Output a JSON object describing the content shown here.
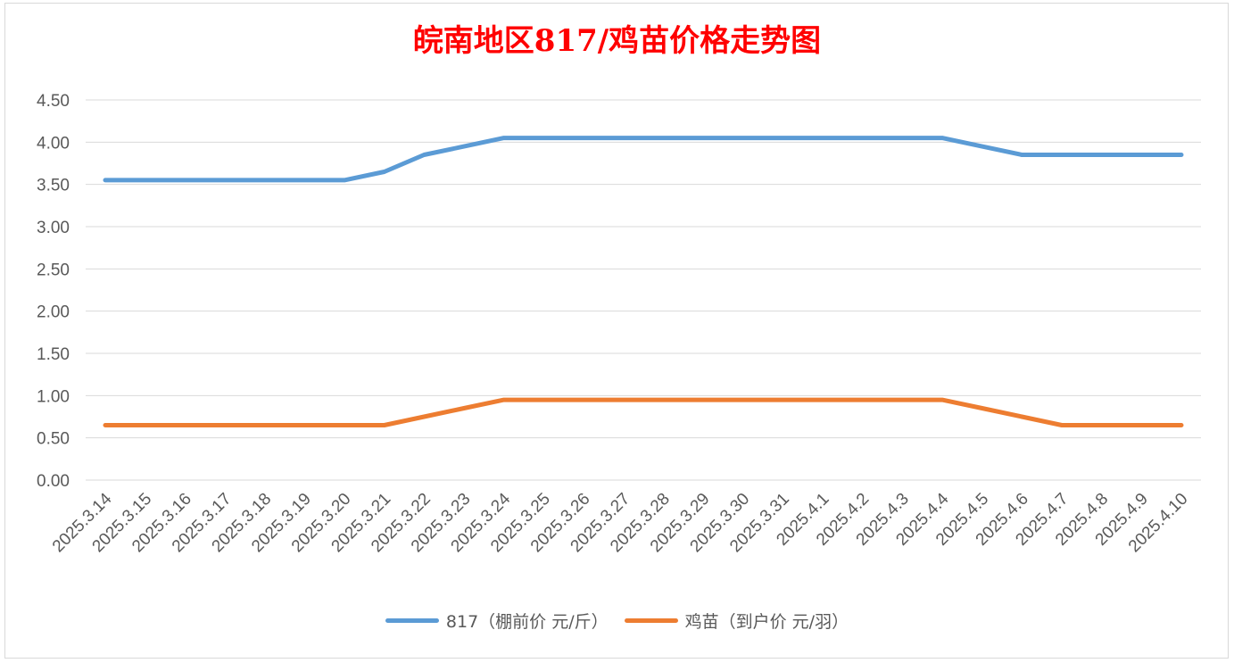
{
  "chart_data": {
    "type": "line",
    "title": "皖南地区817/鸡苗价格走势图",
    "categories": [
      "2025.3.14",
      "2025.3.15",
      "2025.3.16",
      "2025.3.17",
      "2025.3.18",
      "2025.3.19",
      "2025.3.20",
      "2025.3.21",
      "2025.3.22",
      "2025.3.23",
      "2025.3.24",
      "2025.3.25",
      "2025.3.26",
      "2025.3.27",
      "2025.3.28",
      "2025.3.29",
      "2025.3.30",
      "2025.3.31",
      "2025.4.1",
      "2025.4.2",
      "2025.4.3",
      "2025.4.4",
      "2025.4.5",
      "2025.4.6",
      "2025.4.7",
      "2025.4.8",
      "2025.4.9",
      "2025.4.10"
    ],
    "series": [
      {
        "name": "817（棚前价 元/斤）",
        "color": "#5b9bd5",
        "values": [
          3.55,
          3.55,
          3.55,
          3.55,
          3.55,
          3.55,
          3.55,
          3.65,
          3.85,
          3.95,
          4.05,
          4.05,
          4.05,
          4.05,
          4.05,
          4.05,
          4.05,
          4.05,
          4.05,
          4.05,
          4.05,
          4.05,
          3.95,
          3.85,
          3.85,
          3.85,
          3.85,
          3.85
        ]
      },
      {
        "name": "鸡苗（到户价 元/羽）",
        "color": "#ed7d31",
        "values": [
          0.65,
          0.65,
          0.65,
          0.65,
          0.65,
          0.65,
          0.65,
          0.65,
          0.75,
          0.85,
          0.95,
          0.95,
          0.95,
          0.95,
          0.95,
          0.95,
          0.95,
          0.95,
          0.95,
          0.95,
          0.95,
          0.95,
          0.85,
          0.75,
          0.65,
          0.65,
          0.65,
          0.65
        ]
      }
    ],
    "ylim": [
      0,
      4.5
    ],
    "yticks": [
      "0.00",
      "0.50",
      "1.00",
      "1.50",
      "2.00",
      "2.50",
      "3.00",
      "3.50",
      "4.00",
      "4.50"
    ],
    "grid": true,
    "legend_position": "bottom"
  }
}
